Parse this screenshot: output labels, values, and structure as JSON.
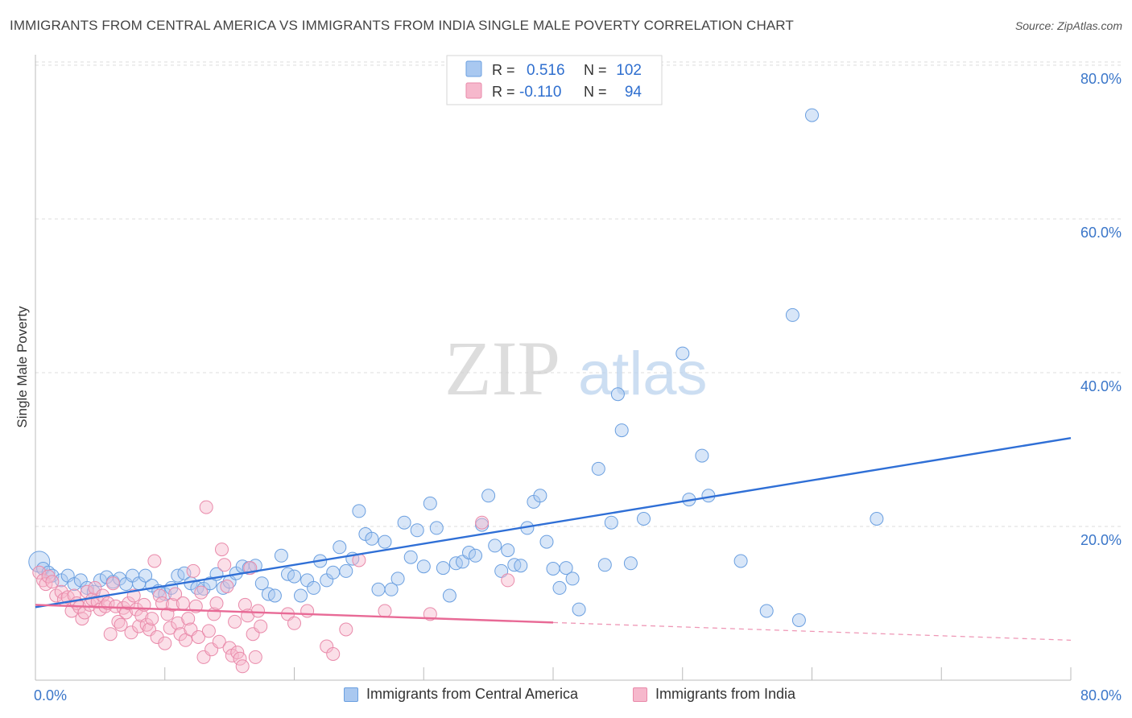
{
  "header": {
    "title": "IMMIGRANTS FROM CENTRAL AMERICA VS IMMIGRANTS FROM INDIA SINGLE MALE POVERTY CORRELATION CHART",
    "source": "Source: ZipAtlas.com"
  },
  "watermark": {
    "zip": "ZIP",
    "atlas": "atlas"
  },
  "colors": {
    "blue_fill": "#a9c8f0",
    "blue_stroke": "#6a9fe0",
    "blue_line": "#2f6fd6",
    "pink_fill": "#f6b8cc",
    "pink_stroke": "#e98aaa",
    "pink_line": "#e86a96",
    "grid": "#dddddd",
    "axis_label": "#3a76c9"
  },
  "legend_box": {
    "rows": [
      {
        "r_label": "R =",
        "r_value": "0.516",
        "n_label": "N =",
        "n_value": "102",
        "swatch": "blue"
      },
      {
        "r_label": "R =",
        "r_value": "-0.110",
        "n_label": "N =",
        "n_value": "94",
        "swatch": "pink"
      }
    ]
  },
  "bottom_legend": {
    "items": [
      {
        "label": "Immigrants from Central America"
      },
      {
        "label": "Immigrants from India"
      }
    ]
  },
  "chart_data": {
    "type": "scatter",
    "title": "IMMIGRANTS FROM CENTRAL AMERICA VS IMMIGRANTS FROM INDIA SINGLE MALE POVERTY CORRELATION CHART",
    "xlabel": "",
    "ylabel": "Single Male Poverty",
    "xlim": [
      0,
      80
    ],
    "ylim": [
      0,
      82
    ],
    "x_tick_labels": [
      "0.0%",
      "80.0%"
    ],
    "y_ticks": [
      20,
      40,
      60,
      80
    ],
    "y_tick_labels": [
      "20.0%",
      "40.0%",
      "60.0%",
      "80.0%"
    ],
    "grid": true,
    "legend_position": "top-center",
    "series": [
      {
        "name": "Immigrants from Central America",
        "color": "blue",
        "R": 0.516,
        "N": 102,
        "trend": {
          "x0": 0,
          "y0": 9.5,
          "x1": 80,
          "y1": 31.5,
          "dashed_from": null
        },
        "points": [
          [
            0.3,
            15.4
          ],
          [
            0.6,
            14.5
          ],
          [
            1.0,
            14.0
          ],
          [
            1.3,
            13.6
          ],
          [
            2.0,
            13.0
          ],
          [
            2.5,
            13.6
          ],
          [
            3.0,
            12.5
          ],
          [
            3.5,
            13.0
          ],
          [
            4.0,
            12.0
          ],
          [
            4.5,
            11.5
          ],
          [
            5.0,
            13.0
          ],
          [
            5.5,
            13.4
          ],
          [
            6.0,
            12.8
          ],
          [
            6.5,
            13.2
          ],
          [
            7.0,
            12.5
          ],
          [
            7.5,
            13.6
          ],
          [
            8.0,
            12.6
          ],
          [
            8.5,
            13.6
          ],
          [
            9.0,
            12.3
          ],
          [
            9.5,
            11.6
          ],
          [
            10.0,
            11.2
          ],
          [
            10.5,
            12.0
          ],
          [
            11.0,
            13.6
          ],
          [
            11.5,
            13.9
          ],
          [
            12.0,
            12.6
          ],
          [
            12.5,
            12.0
          ],
          [
            13.0,
            11.9
          ],
          [
            13.5,
            12.6
          ],
          [
            14.0,
            13.8
          ],
          [
            14.5,
            12.0
          ],
          [
            15.0,
            12.8
          ],
          [
            15.5,
            13.9
          ],
          [
            16.0,
            14.8
          ],
          [
            16.5,
            14.6
          ],
          [
            17.0,
            14.9
          ],
          [
            17.5,
            12.6
          ],
          [
            18.0,
            11.2
          ],
          [
            18.5,
            11.0
          ],
          [
            19.0,
            16.2
          ],
          [
            19.5,
            13.8
          ],
          [
            20.0,
            13.5
          ],
          [
            20.5,
            11.0
          ],
          [
            21.0,
            13.0
          ],
          [
            21.5,
            12.0
          ],
          [
            22.0,
            15.5
          ],
          [
            22.5,
            13.0
          ],
          [
            23.0,
            14.0
          ],
          [
            23.5,
            17.3
          ],
          [
            24.0,
            14.2
          ],
          [
            24.5,
            15.8
          ],
          [
            25.0,
            22.0
          ],
          [
            25.5,
            19.0
          ],
          [
            26.0,
            18.4
          ],
          [
            26.5,
            11.8
          ],
          [
            27.0,
            18.0
          ],
          [
            27.5,
            11.8
          ],
          [
            28.0,
            13.2
          ],
          [
            28.5,
            20.5
          ],
          [
            29.0,
            16.0
          ],
          [
            29.5,
            19.5
          ],
          [
            30.0,
            14.8
          ],
          [
            30.5,
            23.0
          ],
          [
            31.0,
            19.8
          ],
          [
            31.5,
            14.6
          ],
          [
            32.0,
            11.0
          ],
          [
            32.5,
            15.2
          ],
          [
            33.0,
            15.4
          ],
          [
            33.5,
            16.6
          ],
          [
            34.0,
            16.2
          ],
          [
            34.5,
            20.2
          ],
          [
            35.0,
            24.0
          ],
          [
            35.5,
            17.5
          ],
          [
            36.0,
            14.2
          ],
          [
            36.5,
            16.9
          ],
          [
            37.0,
            15.0
          ],
          [
            37.5,
            14.9
          ],
          [
            38.0,
            19.8
          ],
          [
            38.5,
            23.2
          ],
          [
            39.0,
            24.0
          ],
          [
            39.5,
            18.0
          ],
          [
            40.0,
            14.5
          ],
          [
            40.5,
            12.0
          ],
          [
            41.0,
            14.6
          ],
          [
            41.5,
            13.2
          ],
          [
            42.0,
            9.2
          ],
          [
            43.5,
            27.5
          ],
          [
            44.0,
            15.0
          ],
          [
            44.5,
            20.5
          ],
          [
            45.0,
            37.2
          ],
          [
            45.3,
            32.5
          ],
          [
            46.0,
            15.2
          ],
          [
            47.0,
            21.0
          ],
          [
            50.0,
            42.5
          ],
          [
            50.5,
            23.5
          ],
          [
            51.5,
            29.2
          ],
          [
            52.0,
            24.0
          ],
          [
            54.5,
            15.5
          ],
          [
            56.5,
            9.0
          ],
          [
            58.5,
            47.5
          ],
          [
            59.0,
            7.8
          ],
          [
            60.0,
            73.5
          ],
          [
            65.0,
            21.0
          ]
        ]
      },
      {
        "name": "Immigrants from India",
        "color": "pink",
        "R": -0.11,
        "N": 94,
        "trend": {
          "x0": 0,
          "y0": 9.8,
          "x1": 80,
          "y1": 5.2,
          "dashed_from": 40
        },
        "points": [
          [
            0.3,
            14.0
          ],
          [
            0.6,
            13.0
          ],
          [
            0.8,
            12.5
          ],
          [
            1.0,
            13.5
          ],
          [
            1.3,
            12.8
          ],
          [
            1.6,
            11.0
          ],
          [
            2.0,
            11.5
          ],
          [
            2.2,
            10.5
          ],
          [
            2.5,
            10.8
          ],
          [
            2.8,
            9.0
          ],
          [
            3.0,
            11.0
          ],
          [
            3.2,
            10.0
          ],
          [
            3.4,
            9.5
          ],
          [
            3.6,
            8.0
          ],
          [
            3.8,
            8.8
          ],
          [
            4.0,
            11.5
          ],
          [
            4.2,
            9.8
          ],
          [
            4.4,
            10.5
          ],
          [
            4.6,
            12.0
          ],
          [
            4.8,
            10.2
          ],
          [
            5.0,
            9.2
          ],
          [
            5.2,
            11.0
          ],
          [
            5.4,
            9.6
          ],
          [
            5.6,
            10.0
          ],
          [
            5.8,
            6.0
          ],
          [
            6.0,
            12.6
          ],
          [
            6.2,
            9.6
          ],
          [
            6.4,
            7.6
          ],
          [
            6.6,
            7.2
          ],
          [
            6.8,
            9.4
          ],
          [
            7.0,
            8.8
          ],
          [
            7.2,
            10.0
          ],
          [
            7.4,
            6.2
          ],
          [
            7.6,
            11.0
          ],
          [
            7.8,
            9.2
          ],
          [
            8.0,
            7.0
          ],
          [
            8.2,
            8.4
          ],
          [
            8.4,
            9.8
          ],
          [
            8.6,
            7.2
          ],
          [
            8.8,
            6.6
          ],
          [
            9.0,
            8.0
          ],
          [
            9.2,
            15.5
          ],
          [
            9.4,
            5.6
          ],
          [
            9.6,
            11.0
          ],
          [
            9.8,
            10.0
          ],
          [
            10.0,
            4.8
          ],
          [
            10.2,
            8.6
          ],
          [
            10.4,
            6.8
          ],
          [
            10.6,
            9.8
          ],
          [
            10.8,
            11.2
          ],
          [
            11.0,
            7.4
          ],
          [
            11.2,
            6.0
          ],
          [
            11.4,
            10.0
          ],
          [
            11.6,
            5.2
          ],
          [
            11.8,
            8.0
          ],
          [
            12.0,
            6.6
          ],
          [
            12.2,
            14.2
          ],
          [
            12.4,
            9.6
          ],
          [
            12.6,
            5.6
          ],
          [
            12.8,
            11.4
          ],
          [
            13.0,
            3.0
          ],
          [
            13.2,
            22.5
          ],
          [
            13.4,
            6.4
          ],
          [
            13.6,
            4.0
          ],
          [
            13.8,
            8.6
          ],
          [
            14.0,
            10.0
          ],
          [
            14.2,
            5.0
          ],
          [
            14.4,
            17.0
          ],
          [
            14.6,
            15.0
          ],
          [
            14.8,
            12.2
          ],
          [
            15.0,
            4.2
          ],
          [
            15.2,
            3.2
          ],
          [
            15.4,
            7.6
          ],
          [
            15.6,
            3.6
          ],
          [
            15.8,
            2.8
          ],
          [
            16.0,
            1.8
          ],
          [
            16.2,
            9.8
          ],
          [
            16.4,
            8.4
          ],
          [
            16.6,
            14.6
          ],
          [
            16.8,
            6.0
          ],
          [
            17.0,
            3.0
          ],
          [
            17.2,
            9.0
          ],
          [
            17.4,
            7.0
          ],
          [
            19.5,
            8.6
          ],
          [
            20.0,
            7.4
          ],
          [
            21.0,
            9.0
          ],
          [
            22.5,
            4.4
          ],
          [
            23.0,
            3.4
          ],
          [
            24.0,
            6.6
          ],
          [
            25.0,
            15.6
          ],
          [
            27.0,
            9.0
          ],
          [
            30.5,
            8.6
          ],
          [
            34.5,
            20.5
          ],
          [
            36.5,
            13.0
          ]
        ]
      }
    ]
  }
}
